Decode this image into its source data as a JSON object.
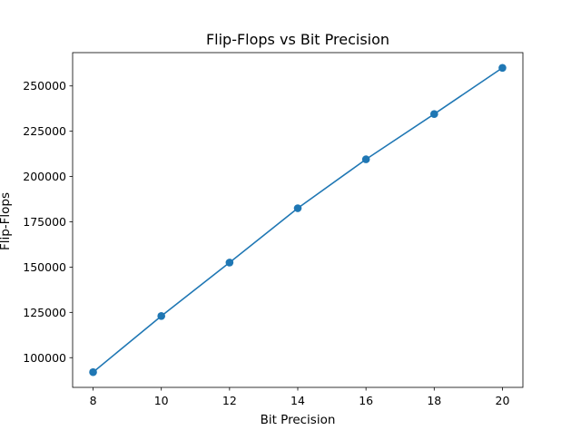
{
  "chart_data": {
    "type": "line",
    "title": "Flip-Flops vs Bit Precision",
    "xlabel": "Bit Precision",
    "ylabel": "Flip-Flops",
    "x": [
      8,
      10,
      12,
      14,
      16,
      18,
      20
    ],
    "series": [
      {
        "values": [
          92000,
          123000,
          152500,
          182500,
          209500,
          234500,
          260000
        ]
      }
    ],
    "xticks": [
      8,
      10,
      12,
      14,
      16,
      18,
      20
    ],
    "yticks": [
      100000,
      125000,
      150000,
      175000,
      200000,
      225000,
      250000
    ],
    "xlim": [
      7.4,
      20.6
    ],
    "ylim": [
      83600,
      268400
    ],
    "grid": false,
    "line_color": "#1f77b4",
    "marker": "circle"
  }
}
